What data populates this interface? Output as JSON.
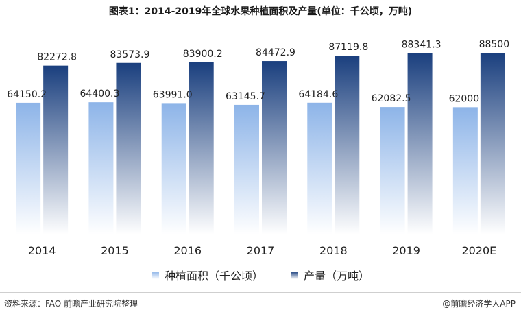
{
  "chart_data": {
    "type": "bar",
    "title": "图表1：2014-2019年全球水果种植面积及产量(单位：千公顷，万吨)",
    "categories": [
      "2014",
      "2015",
      "2016",
      "2017",
      "2018",
      "2019",
      "2020E"
    ],
    "series": [
      {
        "name": "种植面积（千公顷）",
        "values": [
          64150.2,
          64400.3,
          63991.0,
          63145.7,
          64184.6,
          62082.5,
          62000
        ],
        "labels": [
          "64150.2",
          "64400.3",
          "63991.0",
          "63145.7",
          "64184.6",
          "62082.5",
          "62000"
        ],
        "color": "#8db4e8"
      },
      {
        "name": "产量（万吨）",
        "values": [
          82272.8,
          83573.9,
          83900.2,
          84472.9,
          87119.8,
          88341.3,
          88500
        ],
        "labels": [
          "82272.8",
          "83573.9",
          "83900.2",
          "84472.9",
          "87119.8",
          "88341.3",
          "88500"
        ],
        "color": "#1a3f7e"
      }
    ],
    "ylim": [
      0,
      100000
    ],
    "grid": false,
    "legend": "bottom"
  },
  "footer": {
    "source": "资料来源：FAO 前瞻产业研究院整理",
    "brand": "@前瞻经济学人APP"
  }
}
